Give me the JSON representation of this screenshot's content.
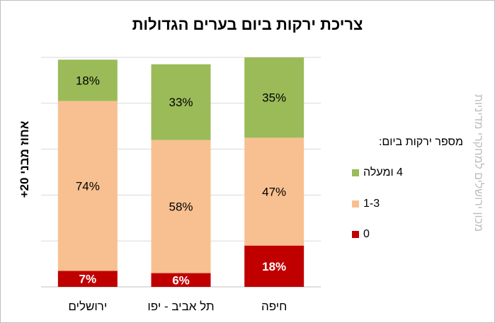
{
  "title": "צריכת ירקות ביום בערים הגדולות",
  "watermark": "מכון ירושלים למחקרי מדיניות",
  "chart_data": {
    "type": "bar",
    "stacked": true,
    "percent_stacked": true,
    "title": "צריכת ירקות ביום בערים הגדולות",
    "ylabel": "אחוז מבני 20+",
    "xlabel": "",
    "ylim": [
      0,
      100
    ],
    "grid": true,
    "legend_title": "מספר ירקות ביום:",
    "legend_position": "right",
    "categories": [
      "ירושלים",
      "תל אביב - יפו",
      "חיפה"
    ],
    "series": [
      {
        "name": "0",
        "color": "#c00000",
        "label_color": "#ffffff",
        "values": [
          7,
          6,
          18
        ],
        "labels": [
          "7%",
          "6%",
          "18%"
        ]
      },
      {
        "name": "1-3",
        "color": "#f8c090",
        "label_color": "#000000",
        "values": [
          74,
          58,
          47
        ],
        "labels": [
          "74%",
          "58%",
          "47%"
        ]
      },
      {
        "name": "4 ומעלה",
        "color": "#9bbb59",
        "label_color": "#000000",
        "values": [
          18,
          33,
          35
        ],
        "labels": [
          "18%",
          "33%",
          "35%"
        ]
      }
    ]
  }
}
